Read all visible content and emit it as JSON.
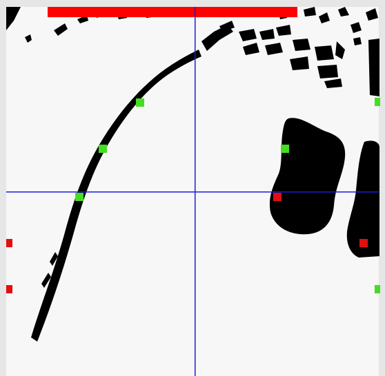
{
  "view": {
    "background": "#f7f7f7",
    "frame_color": "#e6e6e6",
    "shape_color": "#000000",
    "crosshair_color": "#1b1bd6",
    "progress_color": "#ff0000",
    "progress_fraction": 1.0
  },
  "markers": {
    "green_color": "#44dd22",
    "red_color": "#e01010",
    "green_count": 6,
    "red_count": 4
  }
}
